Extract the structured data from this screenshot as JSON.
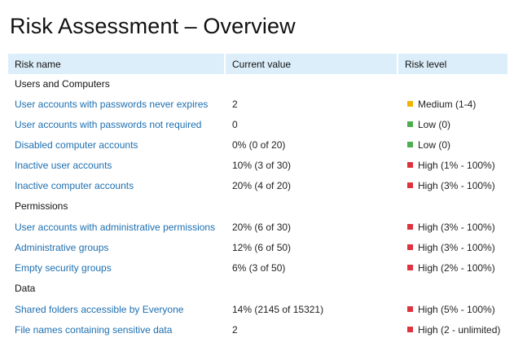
{
  "title": "Risk Assessment – Overview",
  "columns": {
    "name": "Risk name",
    "value": "Current value",
    "level": "Risk level"
  },
  "colors": {
    "high": "#e0323c",
    "medium": "#f2b400",
    "low": "#4cae4f",
    "header_bg": "#dceef9",
    "link": "#1d6fb0"
  },
  "sections": [
    {
      "name": "Users and Computers",
      "rows": [
        {
          "name": "User accounts with passwords never expires",
          "value": "2",
          "level": "Medium (1-4)",
          "severity": "medium"
        },
        {
          "name": "User accounts with passwords not required",
          "value": "0",
          "level": "Low (0)",
          "severity": "low"
        },
        {
          "name": "Disabled computer accounts",
          "value": "0% (0 of 20)",
          "level": "Low (0)",
          "severity": "low"
        },
        {
          "name": "Inactive user accounts",
          "value": "10% (3 of 30)",
          "level": "High (1% - 100%)",
          "severity": "high"
        },
        {
          "name": "Inactive computer accounts",
          "value": "20% (4 of 20)",
          "level": "High (3% - 100%)",
          "severity": "high"
        }
      ]
    },
    {
      "name": "Permissions",
      "rows": [
        {
          "name": "User accounts with administrative permissions",
          "value": "20% (6 of 30)",
          "level": "High (3% - 100%)",
          "severity": "high"
        },
        {
          "name": "Administrative groups",
          "value": "12% (6 of 50)",
          "level": "High (3% - 100%)",
          "severity": "high"
        },
        {
          "name": "Empty security groups",
          "value": "6% (3 of 50)",
          "level": "High (2% - 100%)",
          "severity": "high"
        }
      ]
    },
    {
      "name": "Data",
      "rows": [
        {
          "name": "Shared folders accessible by Everyone",
          "value": "14% (2145 of 15321)",
          "level": "High (5% - 100%)",
          "severity": "high"
        },
        {
          "name": "File names containing sensitive data",
          "value": "2",
          "level": "High (2 - unlimited)",
          "severity": "high"
        }
      ]
    }
  ]
}
